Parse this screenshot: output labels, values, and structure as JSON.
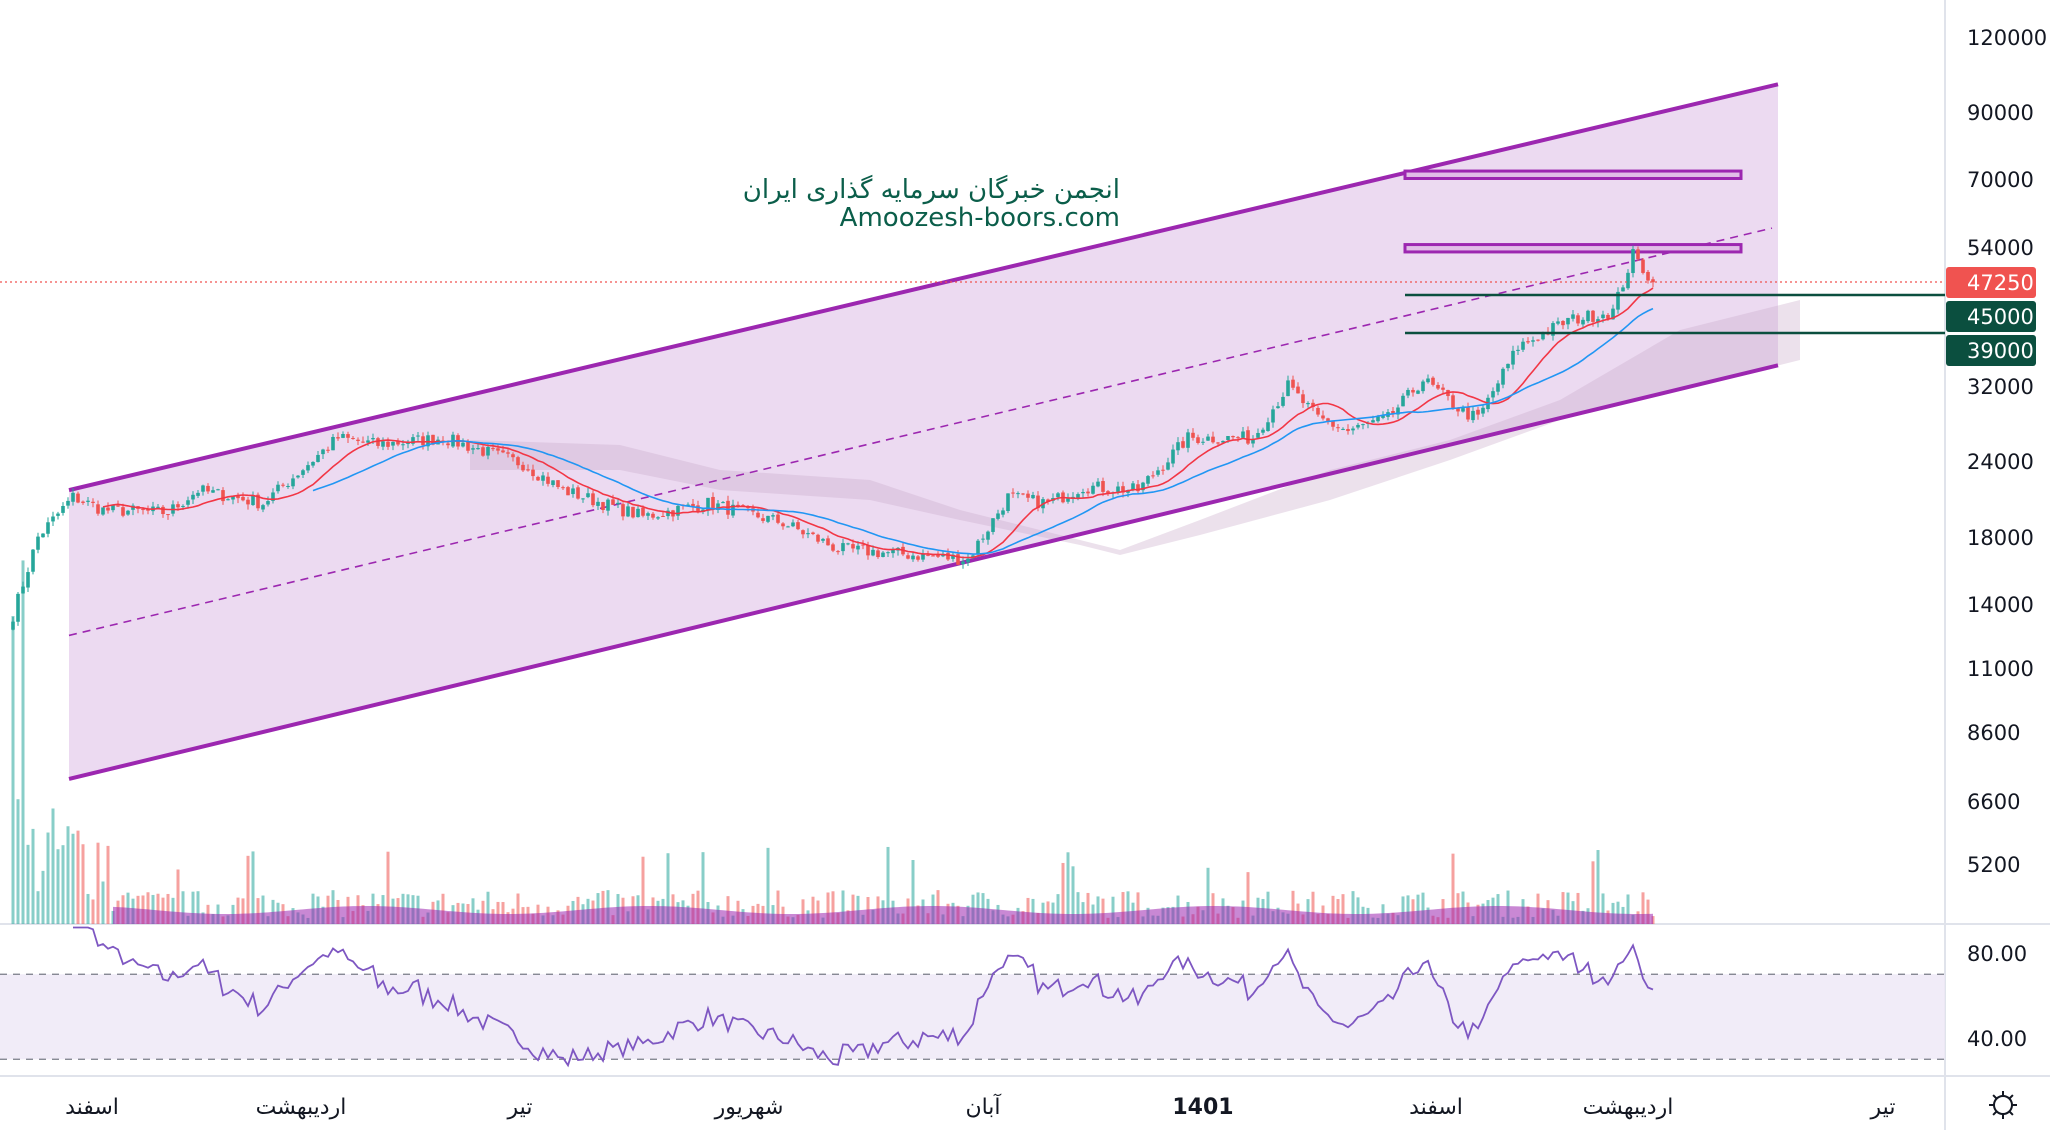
{
  "watermark": {
    "line1": "انجمن خبرگان سرمایه گذاری ایران",
    "line2": "Amoozesh-boors.com"
  },
  "colors": {
    "up": "#26a69a",
    "down": "#ef5350",
    "channel": "#9c27b0",
    "channel_fill": "#e9d3ef",
    "ma_fast": "#f23645",
    "ma_slow": "#2196f3",
    "rsi": "#7e57c2",
    "level_line": "#0b4f3f",
    "last_price": "#f05350"
  },
  "chart_data": [
    {
      "type": "candlestick",
      "scale": "log",
      "price_ticks": [
        "120000",
        "90000",
        "70000",
        "54000",
        "32000",
        "24000",
        "18000",
        "14000",
        "11000",
        "8600",
        "6600",
        "5200"
      ],
      "time_ticks": [
        {
          "label": "اسفند",
          "bold": false
        },
        {
          "label": "اردیبهشت",
          "bold": false
        },
        {
          "label": "تیر",
          "bold": false
        },
        {
          "label": "شهریور",
          "bold": false
        },
        {
          "label": "آبان",
          "bold": false
        },
        {
          "label": "1401",
          "bold": true
        },
        {
          "label": "اسفند",
          "bold": false
        },
        {
          "label": "اردیبهشت",
          "bold": false
        },
        {
          "label": "تیر",
          "bold": false
        }
      ],
      "last_price": "47250",
      "levels": [
        "45000",
        "39000"
      ],
      "resistance_zones": [
        [
          70000,
          72000
        ],
        [
          53000,
          54500
        ]
      ],
      "close_path_bar_price": [
        [
          0,
          13400
        ],
        [
          5,
          18000
        ],
        [
          12,
          20950
        ],
        [
          18,
          19950
        ],
        [
          31,
          19750
        ],
        [
          37,
          21500
        ],
        [
          50,
          20450
        ],
        [
          65,
          26200
        ],
        [
          73,
          25550
        ],
        [
          86,
          26200
        ],
        [
          102,
          23750
        ],
        [
          110,
          21500
        ],
        [
          126,
          19450
        ],
        [
          139,
          20450
        ],
        [
          154,
          19000
        ],
        [
          165,
          17200
        ],
        [
          191,
          16550
        ],
        [
          199,
          20950
        ],
        [
          207,
          20450
        ],
        [
          214,
          21800
        ],
        [
          225,
          21500
        ],
        [
          235,
          26200
        ],
        [
          248,
          26200
        ],
        [
          255,
          31900
        ],
        [
          261,
          28200
        ],
        [
          267,
          26900
        ],
        [
          275,
          28200
        ],
        [
          282,
          32700
        ],
        [
          290,
          28900
        ],
        [
          293,
          28200
        ],
        [
          301,
          37000
        ],
        [
          311,
          40900
        ],
        [
          320,
          42350
        ],
        [
          324,
          52400
        ],
        [
          328,
          47250
        ]
      ],
      "channel": {
        "upper": [
          [
            0,
            21500
          ],
          [
            328,
            100000
          ]
        ],
        "lower": [
          [
            0,
            7200
          ],
          [
            328,
            34500
          ]
        ],
        "mid": [
          [
            0,
            12400
          ],
          [
            327,
            58000
          ]
        ]
      },
      "indicators": [
        "MA fast",
        "MA slow",
        "Ichimoku cloud",
        "Volume"
      ]
    },
    {
      "type": "line",
      "indicator": "RSI",
      "ticks": [
        "80.00",
        "40.00"
      ],
      "bands": [
        70,
        30
      ],
      "ylim": [
        20,
        95
      ]
    }
  ]
}
